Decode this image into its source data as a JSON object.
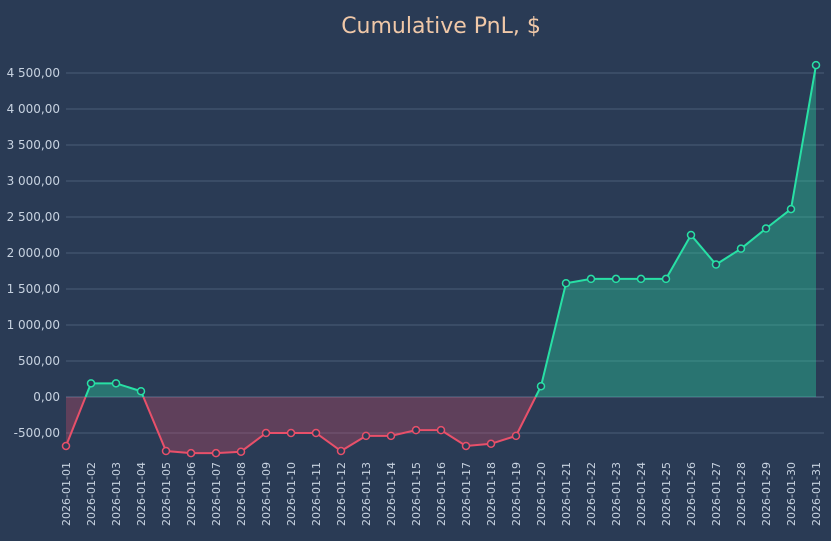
{
  "chart_data": {
    "type": "area",
    "title": "Cumulative PnL, $",
    "xlabel": "",
    "ylabel": "",
    "ylim": [
      -700,
      4600
    ],
    "yticks": [
      -500,
      0,
      500,
      1000,
      1500,
      2000,
      2500,
      3000,
      3500,
      4000,
      4500
    ],
    "ytick_labels": [
      "-500,00",
      "0,00",
      "500,00",
      "1 000,00",
      "1 500,00",
      "2 000,00",
      "2 500,00",
      "3 000,00",
      "3 500,00",
      "4 000,00",
      "4 500,00"
    ],
    "grid": true,
    "colors": {
      "positive": "#28e0a5",
      "negative": "#e8506a",
      "background": "#2a3b55",
      "title": "#f0c8a8"
    },
    "x": [
      "2026-01-01",
      "2026-01-02",
      "2026-01-03",
      "2026-01-04",
      "2026-01-05",
      "2026-01-06",
      "2026-01-07",
      "2026-01-08",
      "2026-01-09",
      "2026-01-10",
      "2026-01-11",
      "2026-01-12",
      "2026-01-13",
      "2026-01-14",
      "2026-01-15",
      "2026-01-16",
      "2026-01-17",
      "2026-01-18",
      "2026-01-19",
      "2026-01-20",
      "2026-01-21",
      "2026-01-22",
      "2026-01-23",
      "2026-01-24",
      "2026-01-25",
      "2026-01-26",
      "2026-01-27",
      "2026-01-28",
      "2026-01-29",
      "2026-01-30",
      "2026-01-31"
    ],
    "values": [
      -680,
      190,
      190,
      80,
      -750,
      -780,
      -780,
      -760,
      -500,
      -500,
      -500,
      -750,
      -540,
      -540,
      -460,
      -460,
      -680,
      -650,
      -540,
      150,
      1580,
      1640,
      1640,
      1640,
      1640,
      2250,
      1840,
      2060,
      2340,
      2610,
      4610
    ]
  }
}
